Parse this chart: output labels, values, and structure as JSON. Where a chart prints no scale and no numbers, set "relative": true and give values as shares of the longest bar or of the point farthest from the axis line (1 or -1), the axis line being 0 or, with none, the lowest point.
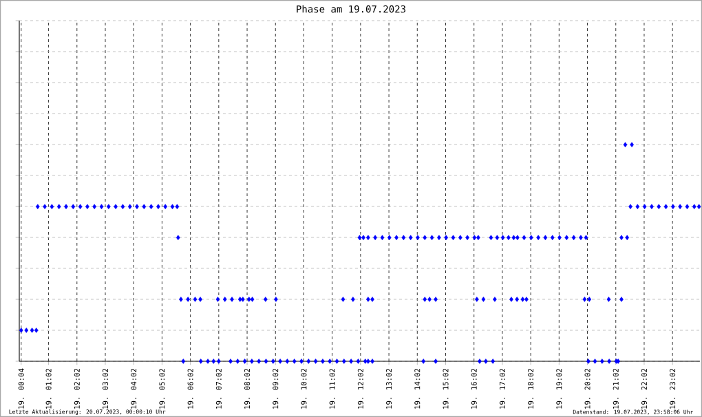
{
  "chart_data": {
    "type": "scatter",
    "title": "Phase am 19.07.2023",
    "annotations": [
      "Letzte Aktualisierung: 20.07.2023, 00:00:10 Uhr",
      "Datenstand: 19.07.2023, 23:58:06 Uhr"
    ],
    "xlim": [
      "2023-07-19T00:00",
      "2023-07-20T00:00"
    ],
    "relative": true,
    "xticks": [
      {
        "value": "2023-07-19T00:04",
        "label": "19. 00:04"
      },
      {
        "value": "2023-07-19T01:02",
        "label": "19. 01:02"
      },
      {
        "value": "2023-07-19T02:02",
        "label": "19. 02:02"
      },
      {
        "value": "2023-07-19T03:02",
        "label": "19. 03:02"
      },
      {
        "value": "2023-07-19T04:02",
        "label": "19. 04:02"
      },
      {
        "value": "2023-07-19T05:02",
        "label": "19. 05:02"
      },
      {
        "value": "2023-07-19T06:02",
        "label": "19. 06:02"
      },
      {
        "value": "2023-07-19T07:02",
        "label": "19. 07:02"
      },
      {
        "value": "2023-07-19T08:02",
        "label": "19. 08:02"
      },
      {
        "value": "2023-07-19T09:02",
        "label": "19. 09:02"
      },
      {
        "value": "2023-07-19T10:02",
        "label": "19. 10:02"
      },
      {
        "value": "2023-07-19T11:02",
        "label": "19. 11:02"
      },
      {
        "value": "2023-07-19T12:02",
        "label": "19. 12:02"
      },
      {
        "value": "2023-07-19T13:02",
        "label": "19. 13:02"
      },
      {
        "value": "2023-07-19T14:02",
        "label": "19. 14:02"
      },
      {
        "value": "2023-07-19T15:02",
        "label": "19. 15:02"
      },
      {
        "value": "2023-07-19T16:02",
        "label": "19. 16:02"
      },
      {
        "value": "2023-07-19T17:02",
        "label": "19. 17:02"
      },
      {
        "value": "2023-07-19T18:02",
        "label": "19. 18:02"
      },
      {
        "value": "2023-07-19T19:02",
        "label": "19. 19:02"
      },
      {
        "value": "2023-07-19T20:02",
        "label": "19. 20:02"
      },
      {
        "value": "2023-07-19T21:02",
        "label": "19. 21:02"
      },
      {
        "value": "2023-07-19T22:02",
        "label": "19. 22:02"
      },
      {
        "value": "2023-07-19T23:02",
        "label": "19. 23:02"
      }
    ],
    "grid": true,
    "marker": "diamond",
    "tick_labels": "x",
    "series": [
      {
        "color": "#0000ff",
        "x": [
          "2023-07-19T00:04",
          "2023-07-19T00:15",
          "2023-07-19T00:27",
          "2023-07-19T00:36",
          "2023-07-19T00:39",
          "2023-07-19T00:54",
          "2023-07-19T01:09",
          "2023-07-19T01:24",
          "2023-07-19T01:39",
          "2023-07-19T01:54",
          "2023-07-19T02:09",
          "2023-07-19T02:24",
          "2023-07-19T02:39",
          "2023-07-19T02:54",
          "2023-07-19T03:09",
          "2023-07-19T03:24",
          "2023-07-19T03:39",
          "2023-07-19T03:54",
          "2023-07-19T04:09",
          "2023-07-19T04:24",
          "2023-07-19T04:39",
          "2023-07-19T04:54",
          "2023-07-19T05:09",
          "2023-07-19T05:24",
          "2023-07-19T05:34",
          "2023-07-19T05:36",
          "2023-07-19T05:42",
          "2023-07-19T05:57",
          "2023-07-19T06:12",
          "2023-07-19T06:23",
          "2023-07-19T05:47",
          "2023-07-19T06:24",
          "2023-07-19T06:39",
          "2023-07-19T06:51",
          "2023-07-19T07:02",
          "2023-07-19T07:00",
          "2023-07-19T07:15",
          "2023-07-19T07:30",
          "2023-07-19T07:47",
          "2023-07-19T07:53",
          "2023-07-19T08:06",
          "2023-07-19T08:13",
          "2023-07-19T08:41",
          "2023-07-19T09:03",
          "2023-07-19T07:27",
          "2023-07-19T07:42",
          "2023-07-19T07:57",
          "2023-07-19T08:12",
          "2023-07-19T08:27",
          "2023-07-19T08:42",
          "2023-07-19T08:57",
          "2023-07-19T09:12",
          "2023-07-19T09:27",
          "2023-07-19T09:42",
          "2023-07-19T09:57",
          "2023-07-19T10:12",
          "2023-07-19T10:27",
          "2023-07-19T10:42",
          "2023-07-19T10:57",
          "2023-07-19T11:12",
          "2023-07-19T11:27",
          "2023-07-19T11:42",
          "2023-07-19T11:57",
          "2023-07-19T12:12",
          "2023-07-19T12:18",
          "2023-07-19T12:27",
          "2023-07-19T11:25",
          "2023-07-19T11:46",
          "2023-07-19T12:18",
          "2023-07-19T12:27",
          "2023-07-19T12:00",
          "2023-07-19T12:08",
          "2023-07-19T12:18",
          "2023-07-19T12:33",
          "2023-07-19T12:48",
          "2023-07-19T13:03",
          "2023-07-19T13:18",
          "2023-07-19T13:33",
          "2023-07-19T13:48",
          "2023-07-19T14:03",
          "2023-07-19T14:18",
          "2023-07-19T14:33",
          "2023-07-19T14:48",
          "2023-07-19T15:03",
          "2023-07-19T15:18",
          "2023-07-19T15:33",
          "2023-07-19T15:48",
          "2023-07-19T16:03",
          "2023-07-19T16:11",
          "2023-07-19T14:15",
          "2023-07-19T14:41",
          "2023-07-19T14:18",
          "2023-07-19T14:28",
          "2023-07-19T14:41",
          "2023-07-19T16:14",
          "2023-07-19T16:27",
          "2023-07-19T16:42",
          "2023-07-19T16:08",
          "2023-07-19T16:22",
          "2023-07-19T16:46",
          "2023-07-19T16:38",
          "2023-07-19T16:51",
          "2023-07-19T17:03",
          "2023-07-19T17:15",
          "2023-07-19T17:26",
          "2023-07-19T17:21",
          "2023-07-19T17:33",
          "2023-07-19T17:45",
          "2023-07-19T17:53",
          "2023-07-19T17:34",
          "2023-07-19T17:48",
          "2023-07-19T18:03",
          "2023-07-19T18:18",
          "2023-07-19T18:33",
          "2023-07-19T18:48",
          "2023-07-19T19:03",
          "2023-07-19T19:18",
          "2023-07-19T19:33",
          "2023-07-19T19:48",
          "2023-07-19T19:59",
          "2023-07-19T19:56",
          "2023-07-19T20:06",
          "2023-07-19T20:47",
          "2023-07-19T21:14",
          "2023-07-19T20:04",
          "2023-07-19T20:18",
          "2023-07-19T20:33",
          "2023-07-19T20:48",
          "2023-07-19T21:03",
          "2023-07-19T21:07",
          "2023-07-19T21:14",
          "2023-07-19T21:26",
          "2023-07-19T21:22",
          "2023-07-19T21:36",
          "2023-07-19T21:33",
          "2023-07-19T21:48",
          "2023-07-19T22:03",
          "2023-07-19T22:18",
          "2023-07-19T22:33",
          "2023-07-19T22:48",
          "2023-07-19T23:03",
          "2023-07-19T23:18",
          "2023-07-19T23:33",
          "2023-07-19T23:48",
          "2023-07-19T23:58"
        ],
        "values": [
          0.143,
          0.143,
          0.143,
          0.143,
          0.714,
          0.714,
          0.714,
          0.714,
          0.714,
          0.714,
          0.714,
          0.714,
          0.714,
          0.714,
          0.714,
          0.714,
          0.714,
          0.714,
          0.714,
          0.714,
          0.714,
          0.714,
          0.714,
          0.714,
          0.714,
          0.571,
          0.286,
          0.286,
          0.286,
          0.286,
          0,
          0,
          0,
          0,
          0,
          0.286,
          0.286,
          0.286,
          0.286,
          0.286,
          0.286,
          0.286,
          0.286,
          0.286,
          0,
          0,
          0,
          0,
          0,
          0,
          0,
          0,
          0,
          0,
          0,
          0,
          0,
          0,
          0,
          0,
          0,
          0,
          0,
          0,
          0,
          0,
          0.286,
          0.286,
          0.286,
          0.286,
          0.571,
          0.571,
          0.571,
          0.571,
          0.571,
          0.571,
          0.571,
          0.571,
          0.571,
          0.571,
          0.571,
          0.571,
          0.571,
          0.571,
          0.571,
          0.571,
          0.571,
          0.571,
          0.571,
          0,
          0,
          0.286,
          0.286,
          0.286,
          0,
          0,
          0,
          0.286,
          0.286,
          0.286,
          0.571,
          0.571,
          0.571,
          0.571,
          0.571,
          0.286,
          0.286,
          0.286,
          0.286,
          0.571,
          0.571,
          0.571,
          0.571,
          0.571,
          0.571,
          0.571,
          0.571,
          0.571,
          0.571,
          0.571,
          0.286,
          0.286,
          0.286,
          0.286,
          0,
          0,
          0,
          0,
          0,
          0,
          0.571,
          0.571,
          1,
          1,
          0.714,
          0.714,
          0.714,
          0.714,
          0.714,
          0.714,
          0.714,
          0.714,
          0.714,
          0.714,
          0.714
        ]
      }
    ]
  }
}
